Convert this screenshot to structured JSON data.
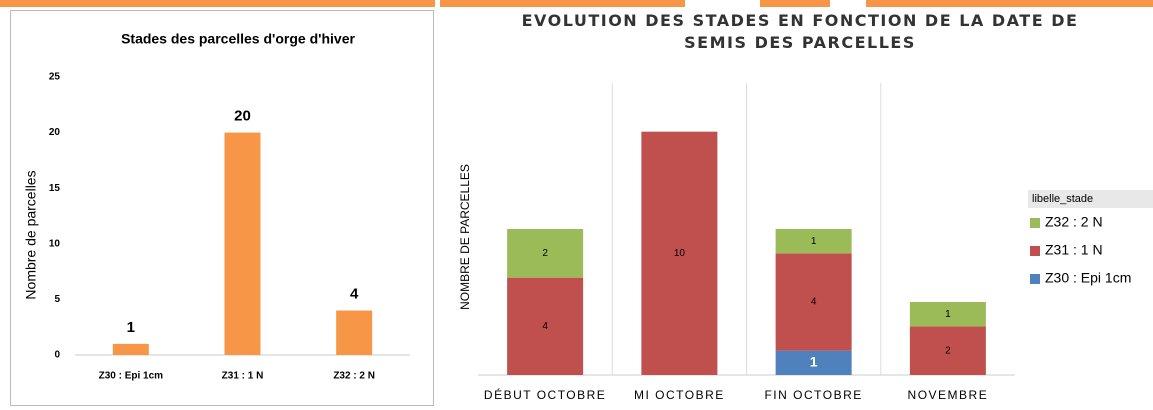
{
  "chart_data": [
    {
      "type": "bar",
      "title": "Stades des parcelles d'orge d'hiver",
      "ylabel": "Nombre de parcelles",
      "categories": [
        "Z30 : Epi 1cm",
        "Z31 : 1 N",
        "Z32 : 2 N"
      ],
      "values": [
        1,
        20,
        4
      ],
      "color": "#f79646",
      "ylim": [
        0,
        25
      ],
      "yticks": [
        0,
        5,
        10,
        15,
        20,
        25
      ],
      "grid": false
    },
    {
      "type": "stacked_bar",
      "title": "EVOLUTION DES STADES EN FONCTION DE LA DATE DE SEMIS DES PARCELLES",
      "ylabel": "NOMBRE DE PARCELLES",
      "legend_title": "libelle_stade",
      "legend": "right",
      "categories": [
        "DÉBUT OCTOBRE",
        "MI OCTOBRE",
        "FIN OCTOBRE",
        "NOVEMBRE"
      ],
      "series": [
        {
          "name": "Z30 : Epi 1cm",
          "color": "#4f81bd",
          "values": [
            null,
            null,
            1,
            null
          ]
        },
        {
          "name": "Z31 : 1 N",
          "color": "#c0504d",
          "values": [
            4,
            10,
            4,
            2
          ]
        },
        {
          "name": "Z32 : 2 N",
          "color": "#9bbb59",
          "values": [
            2,
            null,
            1,
            1
          ]
        }
      ],
      "ylim": [
        0,
        12
      ]
    }
  ]
}
